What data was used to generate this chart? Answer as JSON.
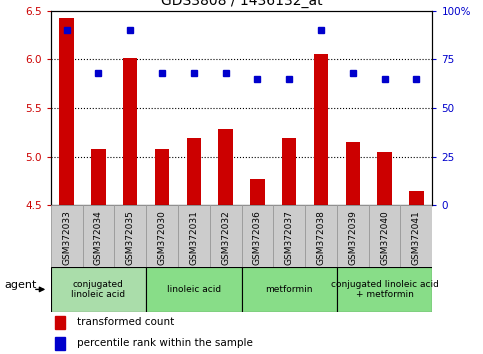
{
  "title": "GDS3808 / 1436132_at",
  "samples": [
    "GSM372033",
    "GSM372034",
    "GSM372035",
    "GSM372030",
    "GSM372031",
    "GSM372032",
    "GSM372036",
    "GSM372037",
    "GSM372038",
    "GSM372039",
    "GSM372040",
    "GSM372041"
  ],
  "transformed_count": [
    6.42,
    5.08,
    6.01,
    5.08,
    5.19,
    5.28,
    4.77,
    5.19,
    6.05,
    5.15,
    5.05,
    4.65
  ],
  "percentile_rank": [
    90,
    68,
    90,
    68,
    68,
    68,
    65,
    65,
    90,
    68,
    65,
    65
  ],
  "ymin": 4.5,
  "ymax": 6.5,
  "yticks_left": [
    4.5,
    5.0,
    5.5,
    6.0,
    6.5
  ],
  "yticks_right": [
    0,
    25,
    50,
    75,
    100
  ],
  "bar_color": "#cc0000",
  "dot_color": "#0000cc",
  "agent_groups": [
    {
      "label": "conjugated\nlinoleic acid",
      "start": 0,
      "end": 3,
      "color": "#aaddaa"
    },
    {
      "label": "linoleic acid",
      "start": 3,
      "end": 6,
      "color": "#88dd88"
    },
    {
      "label": "metformin",
      "start": 6,
      "end": 9,
      "color": "#88dd88"
    },
    {
      "label": "conjugated linoleic acid\n+ metformin",
      "start": 9,
      "end": 12,
      "color": "#88dd88"
    }
  ],
  "legend_transformed_color": "#cc0000",
  "legend_percentile_color": "#0000cc",
  "sample_box_color": "#cccccc",
  "sample_box_edge": "#999999",
  "grid_dotted_color": "black",
  "right_axis_color": "#0000cc",
  "left_axis_color": "#cc0000"
}
